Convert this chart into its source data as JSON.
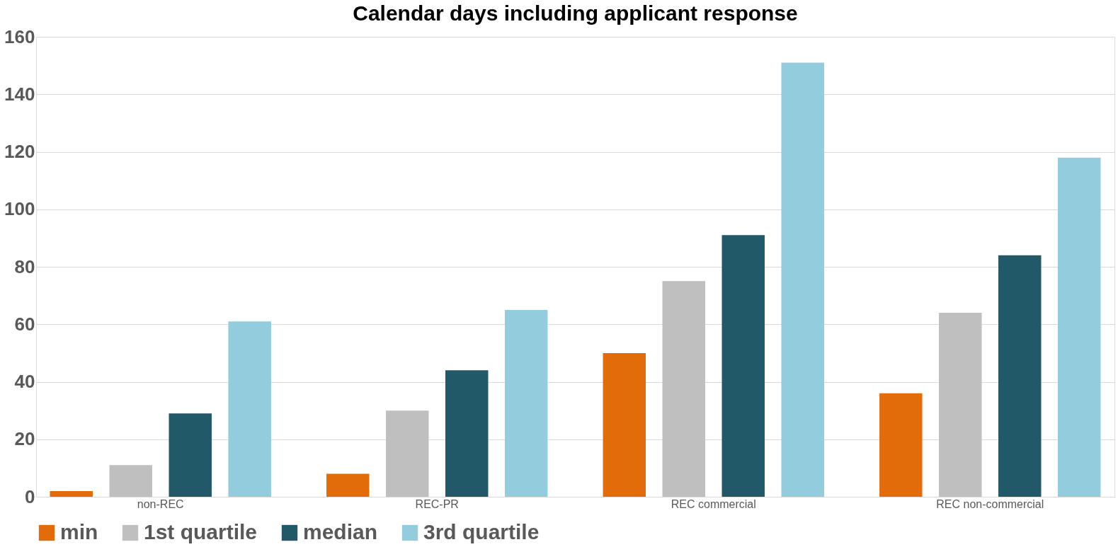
{
  "chart_data": {
    "type": "bar",
    "title": "Calendar days including applicant response",
    "categories": [
      "non-REC",
      "REC-PR",
      "REC commercial",
      "REC non-commercial"
    ],
    "series": [
      {
        "name": "min",
        "color": "#e36c0a",
        "values": [
          2,
          8,
          50,
          36
        ]
      },
      {
        "name": "1st quartile",
        "color": "#bfbfbf",
        "values": [
          11,
          30,
          75,
          64
        ]
      },
      {
        "name": "median",
        "color": "#215968",
        "values": [
          29,
          44,
          91,
          84
        ]
      },
      {
        "name": "3rd quartile",
        "color": "#93cddd",
        "values": [
          61,
          65,
          151,
          118
        ]
      }
    ],
    "ylim": [
      0,
      160
    ],
    "yticks": [
      0,
      20,
      40,
      60,
      80,
      100,
      120,
      140,
      160
    ],
    "grid": "y",
    "legend": "bottom"
  }
}
